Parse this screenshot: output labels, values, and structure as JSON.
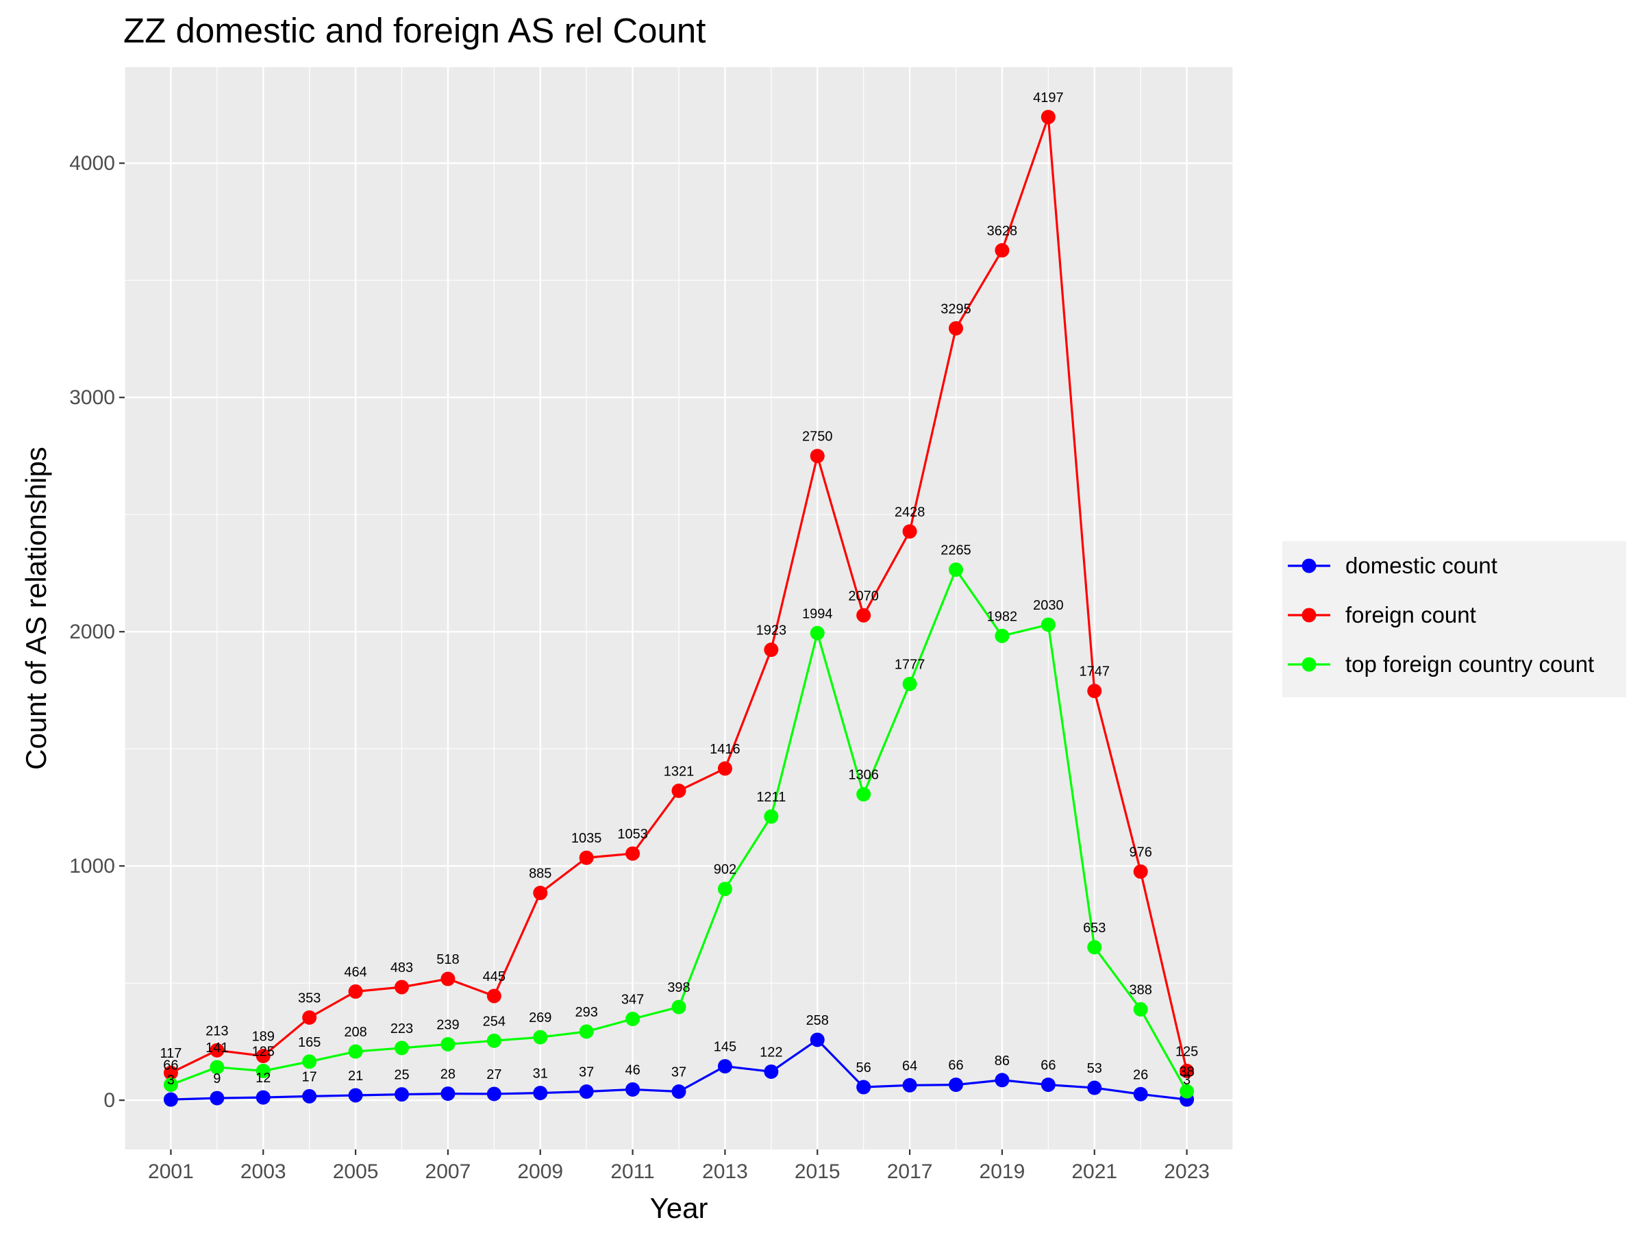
{
  "chart_data": {
    "type": "line",
    "title": "ZZ domestic and foreign AS rel Count",
    "xlabel": "Year",
    "ylabel": "Count of AS relationships",
    "x": [
      2001,
      2002,
      2003,
      2004,
      2005,
      2006,
      2007,
      2008,
      2009,
      2010,
      2011,
      2012,
      2013,
      2014,
      2015,
      2016,
      2017,
      2018,
      2019,
      2020,
      2021,
      2022,
      2023
    ],
    "x_ticks": [
      "2001",
      "2003",
      "2005",
      "2007",
      "2009",
      "2011",
      "2013",
      "2015",
      "2017",
      "2019",
      "2021",
      "2023"
    ],
    "y_ticks": [
      "0",
      "1000",
      "2000",
      "3000",
      "4000"
    ],
    "xlim": [
      2000,
      2024
    ],
    "ylim": [
      -210,
      4410
    ],
    "grid": true,
    "background": "#ebebeb",
    "legend_position": "right",
    "series": [
      {
        "name": "domestic count",
        "color": "#0000ff",
        "values": [
          3,
          9,
          12,
          17,
          21,
          25,
          28,
          27,
          31,
          37,
          46,
          37,
          145,
          122,
          258,
          56,
          64,
          66,
          86,
          66,
          53,
          26,
          3
        ]
      },
      {
        "name": "foreign count",
        "color": "#ff0000",
        "values": [
          117,
          213,
          189,
          353,
          464,
          483,
          518,
          445,
          885,
          1035,
          1053,
          1321,
          1416,
          1923,
          2750,
          2070,
          2428,
          3295,
          3628,
          4197,
          1747,
          976,
          125
        ]
      },
      {
        "name": "top foreign country count",
        "color": "#00ff00",
        "values": [
          66,
          141,
          125,
          165,
          208,
          223,
          239,
          254,
          269,
          293,
          347,
          398,
          902,
          1211,
          1994,
          1306,
          1777,
          2265,
          1982,
          2030,
          653,
          388,
          38
        ]
      }
    ]
  }
}
